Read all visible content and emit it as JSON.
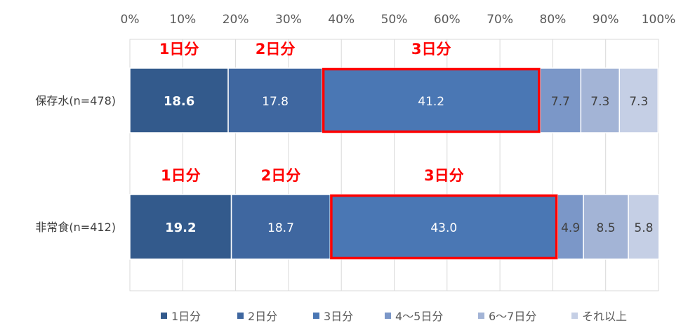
{
  "chart_data": {
    "type": "bar",
    "orientation": "horizontal",
    "stacked": true,
    "percent": true,
    "categories": [
      "保存水(n=478)",
      "非常食(n=412)"
    ],
    "series": [
      {
        "name": "1日分",
        "values": [
          18.6,
          19.2
        ],
        "color": "#335a8c"
      },
      {
        "name": "2日分",
        "values": [
          17.8,
          18.7
        ],
        "color": "#3f67a0"
      },
      {
        "name": "3日分",
        "values": [
          41.2,
          43.0
        ],
        "color": "#4a77b4"
      },
      {
        "name": "4〜5日分",
        "values": [
          7.7,
          4.9
        ],
        "color": "#7b97c8"
      },
      {
        "name": "6〜7日分",
        "values": [
          7.3,
          8.5
        ],
        "color": "#a3b4d6"
      },
      {
        "name": "それ以上",
        "values": [
          7.3,
          5.8
        ],
        "color": "#c5cfe5"
      }
    ],
    "xlim": [
      0,
      100
    ],
    "x_ticks": [
      "0%",
      "10%",
      "20%",
      "30%",
      "40%",
      "50%",
      "60%",
      "70%",
      "80%",
      "90%",
      "100%"
    ],
    "grid": true,
    "legend_position": "bottom",
    "annotations": {
      "labels": [
        "1日分",
        "2日分",
        "3日分"
      ],
      "color": "#ff0000",
      "highlight_series": "3日分"
    }
  }
}
